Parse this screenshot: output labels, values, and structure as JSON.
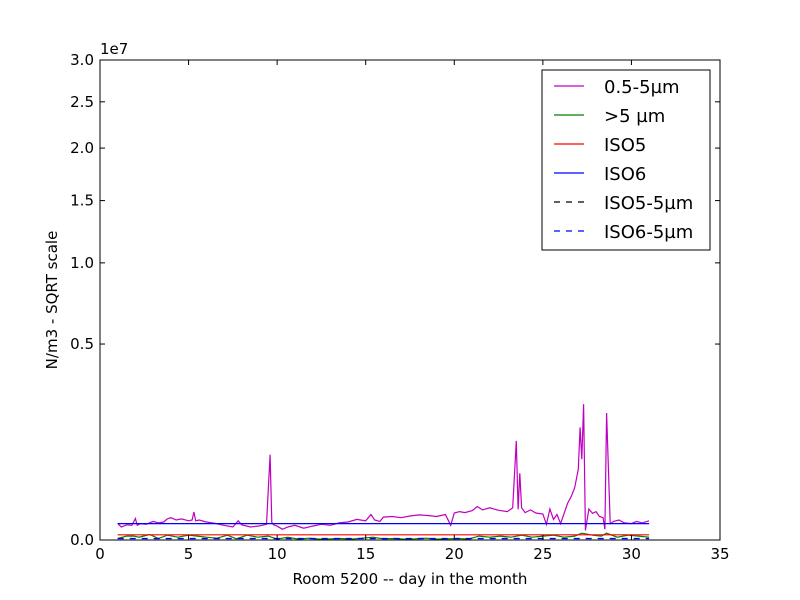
{
  "chart_data": {
    "type": "line",
    "xlabel": "Room 5200 -- day in the month",
    "ylabel": "N/m3 - SQRT scale",
    "y_scale": "sqrt",
    "y_offset_text": "1e7",
    "xlim": [
      0,
      35
    ],
    "ylim": [
      0,
      3.0
    ],
    "x_ticks": [
      0,
      5,
      10,
      15,
      20,
      25,
      30,
      35
    ],
    "y_ticks": [
      0.0,
      0.5,
      1.0,
      1.5,
      2.0,
      2.5,
      3.0
    ],
    "y_tick_labels": [
      "0.0",
      "0.5",
      "1.0",
      "1.5",
      "2.0",
      "2.5",
      "3.0"
    ],
    "legend_position": "top-right",
    "grid": false,
    "series": [
      {
        "name": "0.5-5µm",
        "color": "#bf00bf",
        "style": "solid",
        "x": [
          1.0,
          1.2,
          1.5,
          1.8,
          2.0,
          2.1,
          2.3,
          2.6,
          3.0,
          3.3,
          3.6,
          3.8,
          4.0,
          4.3,
          4.6,
          5.0,
          5.2,
          5.3,
          5.4,
          5.6,
          6.0,
          6.5,
          7.0,
          7.5,
          7.8,
          8.0,
          8.5,
          9.0,
          9.4,
          9.6,
          9.7,
          9.8,
          10.0,
          10.3,
          10.6,
          11.0,
          11.5,
          12.0,
          12.5,
          13.0,
          13.5,
          14.0,
          14.5,
          15.0,
          15.3,
          15.5,
          15.8,
          16.0,
          16.5,
          17.0,
          17.5,
          18.0,
          18.5,
          19.0,
          19.5,
          19.8,
          20.0,
          20.3,
          20.6,
          21.0,
          21.3,
          21.6,
          22.0,
          22.5,
          23.0,
          23.3,
          23.5,
          23.6,
          23.7,
          23.8,
          24.0,
          24.3,
          24.6,
          25.0,
          25.2,
          25.4,
          25.6,
          25.8,
          26.0,
          26.2,
          26.4,
          26.6,
          26.8,
          27.0,
          27.1,
          27.2,
          27.3,
          27.4,
          27.6,
          27.8,
          28.0,
          28.2,
          28.4,
          28.5,
          28.6,
          28.8,
          29.0,
          29.3,
          29.6,
          30.0,
          30.3,
          30.6,
          31.0
        ],
        "y": [
          0.0036,
          0.0022,
          0.003,
          0.0028,
          0.006,
          0.0028,
          0.0035,
          0.0032,
          0.0045,
          0.0038,
          0.0042,
          0.0058,
          0.0065,
          0.0052,
          0.0058,
          0.0048,
          0.0052,
          0.0102,
          0.0048,
          0.0052,
          0.0042,
          0.0036,
          0.0028,
          0.0022,
          0.0048,
          0.003,
          0.0022,
          0.0026,
          0.0032,
          0.095,
          0.004,
          0.003,
          0.0025,
          0.0015,
          0.0022,
          0.0028,
          0.0018,
          0.0025,
          0.0032,
          0.0028,
          0.0038,
          0.0042,
          0.0055,
          0.0048,
          0.0085,
          0.0052,
          0.0045,
          0.0068,
          0.0072,
          0.0065,
          0.0075,
          0.0082,
          0.0078,
          0.0072,
          0.0085,
          0.0028,
          0.0095,
          0.0105,
          0.0098,
          0.0112,
          0.0145,
          0.0118,
          0.0135,
          0.0115,
          0.0105,
          0.0135,
          0.128,
          0.0122,
          0.058,
          0.0135,
          0.0098,
          0.0118,
          0.0095,
          0.0088,
          0.0032,
          0.0125,
          0.0055,
          0.0085,
          0.0035,
          0.0092,
          0.0178,
          0.0245,
          0.0358,
          0.065,
          0.165,
          0.085,
          0.24,
          0.0012,
          0.0125,
          0.0092,
          0.0105,
          0.0072,
          0.0065,
          0.0015,
          0.21,
          0.0035,
          0.0045,
          0.0052,
          0.0038,
          0.0035,
          0.0045,
          0.0038,
          0.0048
        ]
      },
      {
        "name": ">5 µm",
        "color": "#008000",
        "style": "solid",
        "x": [
          1.0,
          1.5,
          1.9,
          2.2,
          2.8,
          3.3,
          3.8,
          4.4,
          5.0,
          5.5,
          6.0,
          6.6,
          7.2,
          7.7,
          8.3,
          8.9,
          9.5,
          10.0,
          10.6,
          11.2,
          11.8,
          12.4,
          13.0,
          13.6,
          14.2,
          14.8,
          15.4,
          16.0,
          16.6,
          17.2,
          17.8,
          18.4,
          19.0,
          19.6,
          20.2,
          20.8,
          21.4,
          22.0,
          22.6,
          23.2,
          23.8,
          24.4,
          25.0,
          25.6,
          26.2,
          26.8,
          27.2,
          27.4,
          27.8,
          28.3,
          28.6,
          29.2,
          29.8,
          30.4,
          31.0
        ],
        "y": [
          3e-05,
          0.0002,
          0.0002,
          0.0001,
          0.0004,
          3e-05,
          0.0003,
          0.0001,
          0.0003,
          0.0002,
          0.0001,
          4e-05,
          0.0003,
          2e-05,
          0.0003,
          0.0001,
          0.0002,
          1e-05,
          0.0001,
          1e-05,
          4e-05,
          1e-05,
          2e-05,
          3e-05,
          1e-05,
          4e-05,
          0.0001,
          2e-05,
          3e-05,
          1e-05,
          2e-05,
          4e-05,
          1e-05,
          2e-05,
          3e-05,
          1e-05,
          0.0002,
          0.0001,
          0.0002,
          0.0001,
          0.0003,
          0.0001,
          0.0002,
          0.0003,
          0.0001,
          0.0002,
          0.0006,
          0.0005,
          0.0003,
          0.0002,
          0.0006,
          0.0001,
          0.0003,
          0.0002,
          0.0001
        ]
      },
      {
        "name": "ISO5",
        "color": "#ff0000",
        "style": "solid",
        "x": [
          1.0,
          31.0
        ],
        "y": [
          0.000352,
          0.000352
        ]
      },
      {
        "name": "ISO6",
        "color": "#0000ff",
        "style": "solid",
        "x": [
          1.0,
          31.0
        ],
        "y": [
          0.00352,
          0.00352
        ]
      },
      {
        "name": "ISO5-5µm",
        "color": "#000000",
        "style": "dashed",
        "x": [
          1.0,
          31.0
        ],
        "y": [
          0.0,
          0.0
        ]
      },
      {
        "name": "ISO6-5µm",
        "color": "#0000ff",
        "style": "dashed",
        "x": [
          1.0,
          31.0
        ],
        "y": [
          2.9e-05,
          2.9e-05
        ]
      }
    ]
  }
}
